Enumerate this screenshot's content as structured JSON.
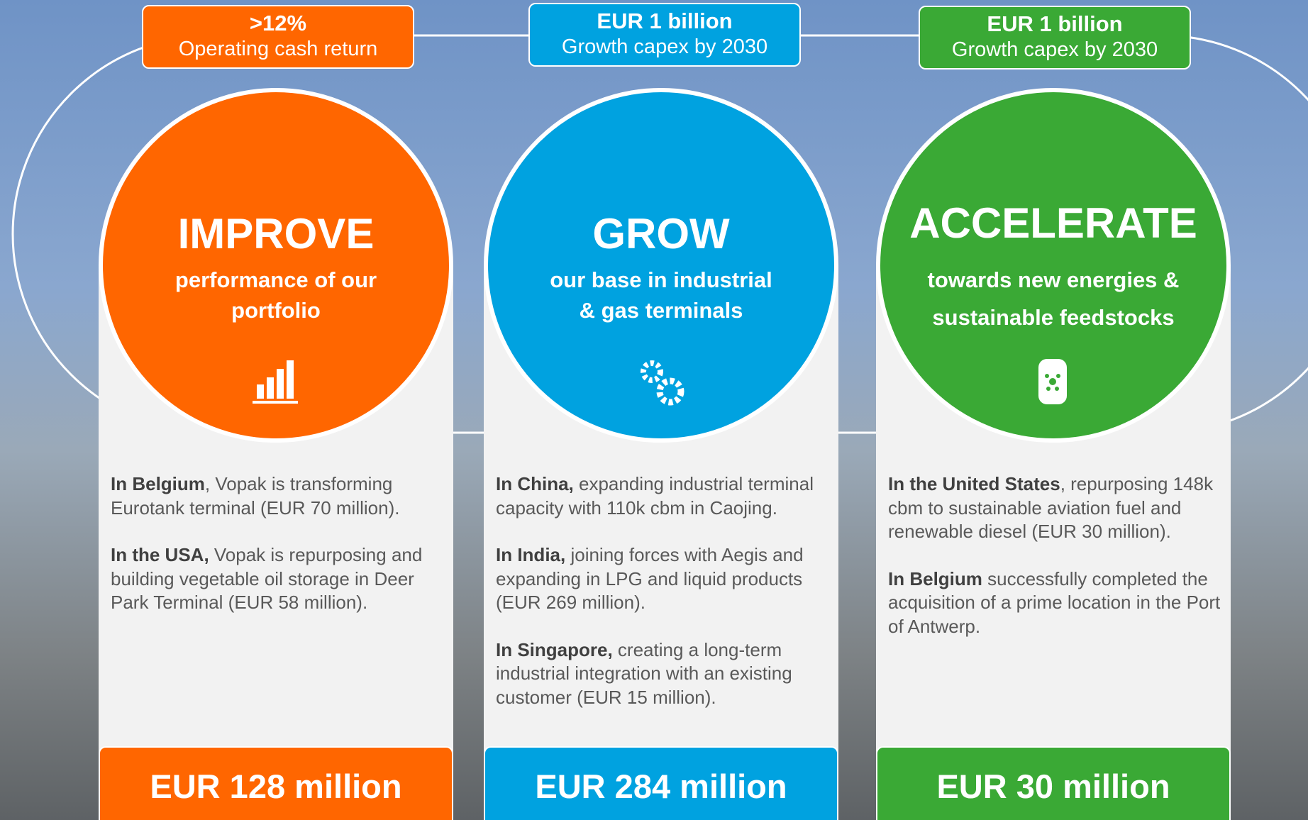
{
  "columns": [
    {
      "badge": {
        "title": ">12%",
        "subtitle": "Operating cash return"
      },
      "heading": "IMPROVE",
      "subheading": [
        "performance of our",
        "portfolio"
      ],
      "paragraphs": [
        {
          "lead": "In Belgium",
          "text": ", Vopak is transforming Eurotank terminal (EUR 70 million)."
        },
        {
          "lead": "In the USA,",
          "text": " Vopak is repurposing and building vegetable oil storage in Deer Park Terminal (EUR 58 million)."
        }
      ],
      "total": "EUR 128 million"
    },
    {
      "badge": {
        "title": "EUR 1 billion",
        "subtitle": "Growth capex by 2030"
      },
      "heading": "GROW",
      "subheading": [
        "our base in industrial",
        "& gas terminals"
      ],
      "paragraphs": [
        {
          "lead": "In China,",
          "text": " expanding industrial terminal capacity with 110k cbm in Caojing."
        },
        {
          "lead": "In India,",
          "text": " joining forces with Aegis and expanding in LPG and liquid products (EUR 269 million)."
        },
        {
          "lead": "In Singapore,",
          "text": " creating a long-term industrial integration with an existing customer (EUR 15 million)."
        }
      ],
      "total": "EUR 284 million"
    },
    {
      "badge": {
        "title": "EUR 1 billion",
        "subtitle": "Growth capex by 2030"
      },
      "heading": "ACCELERATE",
      "subheading": [
        "towards new energies &",
        "sustainable feedstocks"
      ],
      "paragraphs": [
        {
          "lead": "In the United States",
          "text": ", repurposing 148k cbm to sustainable aviation fuel and renewable diesel (EUR 30 million)."
        },
        {
          "lead": "In Belgium",
          "text": " successfully completed the acquisition of a prime location in the Port of Antwerp."
        }
      ],
      "total": "EUR 30 million"
    }
  ]
}
